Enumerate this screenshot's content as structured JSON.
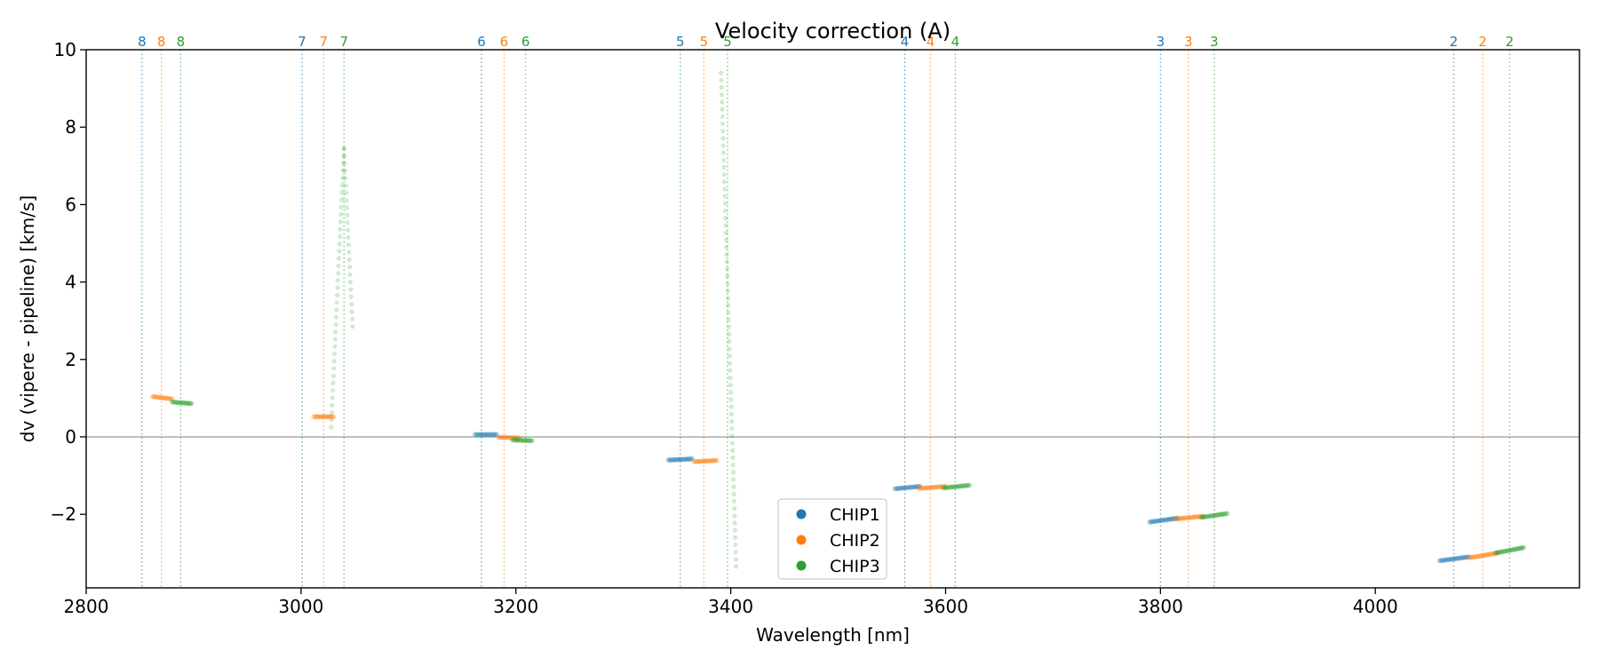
{
  "chart_data": {
    "type": "scatter",
    "title": "Velocity correction (A)",
    "xlabel": "Wavelength [nm]",
    "ylabel": "dv (vipere - pipeline) [km/s]",
    "xlim": [
      2800,
      4190
    ],
    "ylim": [
      -3.9,
      10
    ],
    "xticks": [
      2800,
      3000,
      3200,
      3400,
      3600,
      3800,
      4000
    ],
    "yticks": [
      -2,
      0,
      2,
      4,
      6,
      8,
      10
    ],
    "ytick_labels": [
      "−2",
      "0",
      "2",
      "4",
      "6",
      "8",
      "10"
    ],
    "zero_line": true,
    "grid": false,
    "legend": {
      "position": "lower-center",
      "entries": [
        "CHIP1",
        "CHIP2",
        "CHIP3"
      ]
    },
    "colors": {
      "CHIP1": "#1f77b4",
      "CHIP2": "#ff7f0e",
      "CHIP3": "#2ca02c",
      "zero_line": "#999999"
    },
    "order_markers": [
      {
        "order": "8",
        "chip": "CHIP1",
        "x": 2852
      },
      {
        "order": "8",
        "chip": "CHIP2",
        "x": 2870
      },
      {
        "order": "8",
        "chip": "CHIP3",
        "x": 2888
      },
      {
        "order": "7",
        "chip": "CHIP1",
        "x": 3001
      },
      {
        "order": "7",
        "chip": "CHIP2",
        "x": 3021
      },
      {
        "order": "7",
        "chip": "CHIP3",
        "x": 3040
      },
      {
        "order": "6",
        "chip": "CHIP1",
        "x": 3168
      },
      {
        "order": "6",
        "chip": "CHIP2",
        "x": 3189
      },
      {
        "order": "6",
        "chip": "CHIP3",
        "x": 3209
      },
      {
        "order": "5",
        "chip": "CHIP1",
        "x": 3353
      },
      {
        "order": "5",
        "chip": "CHIP2",
        "x": 3375
      },
      {
        "order": "5",
        "chip": "CHIP3",
        "x": 3397
      },
      {
        "order": "4",
        "chip": "CHIP1",
        "x": 3562
      },
      {
        "order": "4",
        "chip": "CHIP2",
        "x": 3586
      },
      {
        "order": "4",
        "chip": "CHIP3",
        "x": 3609
      },
      {
        "order": "3",
        "chip": "CHIP1",
        "x": 3800
      },
      {
        "order": "3",
        "chip": "CHIP2",
        "x": 3826
      },
      {
        "order": "3",
        "chip": "CHIP3",
        "x": 3850
      },
      {
        "order": "2",
        "chip": "CHIP1",
        "x": 4073
      },
      {
        "order": "2",
        "chip": "CHIP2",
        "x": 4100
      },
      {
        "order": "2",
        "chip": "CHIP3",
        "x": 4125
      }
    ],
    "series": [
      {
        "name": "CHIP1",
        "segments": [
          {
            "x0": 3162,
            "x1": 3182,
            "y0": 0.06,
            "y1": 0.06
          },
          {
            "x0": 3342,
            "x1": 3364,
            "y0": -0.6,
            "y1": -0.57
          },
          {
            "x0": 3553,
            "x1": 3576,
            "y0": -1.34,
            "y1": -1.28
          },
          {
            "x0": 3790,
            "x1": 3816,
            "y0": -2.2,
            "y1": -2.1
          },
          {
            "x0": 4060,
            "x1": 4087,
            "y0": -3.2,
            "y1": -3.1
          }
        ]
      },
      {
        "name": "CHIP2",
        "segments": [
          {
            "x0": 2862,
            "x1": 2880,
            "y0": 1.04,
            "y1": 0.98
          },
          {
            "x0": 3012,
            "x1": 3030,
            "y0": 0.52,
            "y1": 0.52
          },
          {
            "x0": 3184,
            "x1": 3203,
            "y0": -0.01,
            "y1": -0.03
          },
          {
            "x0": 3366,
            "x1": 3387,
            "y0": -0.64,
            "y1": -0.61
          },
          {
            "x0": 3575,
            "x1": 3600,
            "y0": -1.33,
            "y1": -1.28
          },
          {
            "x0": 3814,
            "x1": 3840,
            "y0": -2.12,
            "y1": -2.05
          },
          {
            "x0": 4088,
            "x1": 4114,
            "y0": -3.12,
            "y1": -3.0
          }
        ]
      },
      {
        "name": "CHIP3",
        "segments": [
          {
            "x0": 2880,
            "x1": 2898,
            "y0": 0.9,
            "y1": 0.86
          },
          {
            "x0": 3197,
            "x1": 3215,
            "y0": -0.08,
            "y1": -0.1
          },
          {
            "x0": 3598,
            "x1": 3622,
            "y0": -1.32,
            "y1": -1.25
          },
          {
            "x0": 3838,
            "x1": 3862,
            "y0": -2.08,
            "y1": -1.98
          },
          {
            "x0": 4112,
            "x1": 4138,
            "y0": -3.0,
            "y1": -2.86
          }
        ],
        "outlier_tracks": [
          {
            "x0": 3028,
            "x1": 3040,
            "y0": 0.25,
            "y1": 7.45
          },
          {
            "x0": 3040,
            "x1": 3048,
            "y0": 7.45,
            "y1": 2.85
          },
          {
            "x0": 3391,
            "x1": 3405,
            "y0": 9.4,
            "y1": -3.35
          }
        ]
      }
    ]
  }
}
